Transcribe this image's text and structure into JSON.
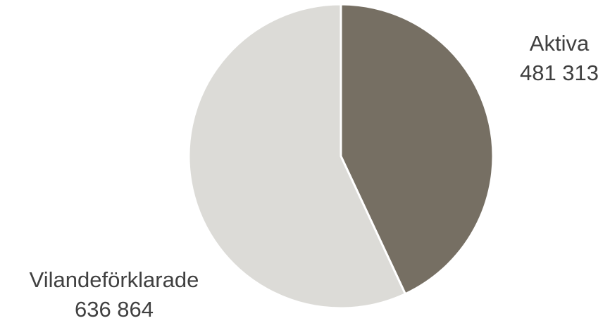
{
  "chart_data": {
    "type": "pie",
    "start_angle_deg": 0,
    "direction": "clockwise",
    "slices": [
      {
        "label": "Aktiva",
        "value_label": "481 313",
        "value": 481313,
        "color": "#766f63"
      },
      {
        "label": "Vilandeförklarade",
        "value_label": "636 864",
        "value": 636864,
        "color": "#dcdbd7"
      }
    ],
    "slice_border_color": "#ffffff",
    "legend": "none"
  }
}
